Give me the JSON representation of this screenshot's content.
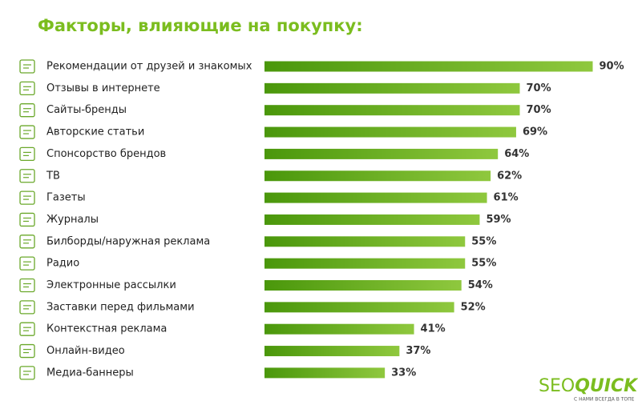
{
  "chart_data": {
    "type": "bar",
    "orientation": "horizontal",
    "title": "Факторы, влияющие на покупку:",
    "categories": [
      "Рекомендации от друзей и знакомых",
      "Отзывы в интернете",
      "Сайты-бренды",
      "Авторские статьи",
      "Спонсорство брендов",
      "ТВ",
      "Газеты",
      "Журналы",
      "Билборды/наружная реклама",
      "Радио",
      "Электронные рассылки",
      "Заставки перед фильмами",
      "Контекстная реклама",
      "Онлайн-видео",
      "Медиа-баннеры"
    ],
    "values": [
      90,
      70,
      70,
      69,
      64,
      62,
      61,
      59,
      55,
      55,
      54,
      52,
      41,
      37,
      33
    ],
    "value_labels": [
      "90%",
      "70%",
      "70%",
      "69%",
      "64%",
      "62%",
      "61%",
      "59%",
      "55%",
      "55%",
      "54%",
      "52%",
      "41%",
      "37%",
      "33%"
    ],
    "colors": [
      "#4a970b",
      "#8fc83e"
    ]
  },
  "logo": {
    "text_a": "SEO",
    "text_b": "QUICK",
    "tagline": "С НАМИ ВСЕГДА В ТОПЕ"
  }
}
